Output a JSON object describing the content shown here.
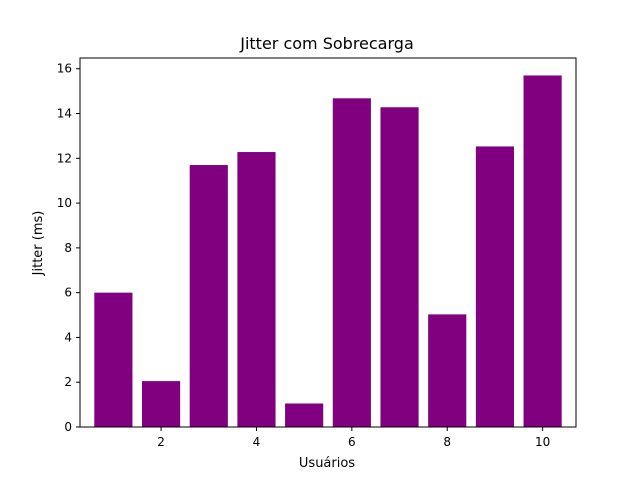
{
  "chart_data": {
    "type": "bar",
    "title": "Jitter com Sobrecarga",
    "xlabel": "Usuários",
    "ylabel": "Jitter (ms)",
    "categories": [
      1,
      2,
      3,
      4,
      5,
      6,
      7,
      8,
      9,
      10
    ],
    "values": [
      6.0,
      2.05,
      11.7,
      12.28,
      1.05,
      14.68,
      14.28,
      5.03,
      12.53,
      15.7
    ],
    "bar_color": "#800080",
    "xlim": [
      0.3,
      10.7
    ],
    "ylim": [
      0,
      16.48
    ],
    "xticks": [
      2,
      4,
      6,
      8,
      10
    ],
    "yticks": [
      0,
      2,
      4,
      6,
      8,
      10,
      12,
      14,
      16
    ],
    "grid": false,
    "legend": null
  }
}
